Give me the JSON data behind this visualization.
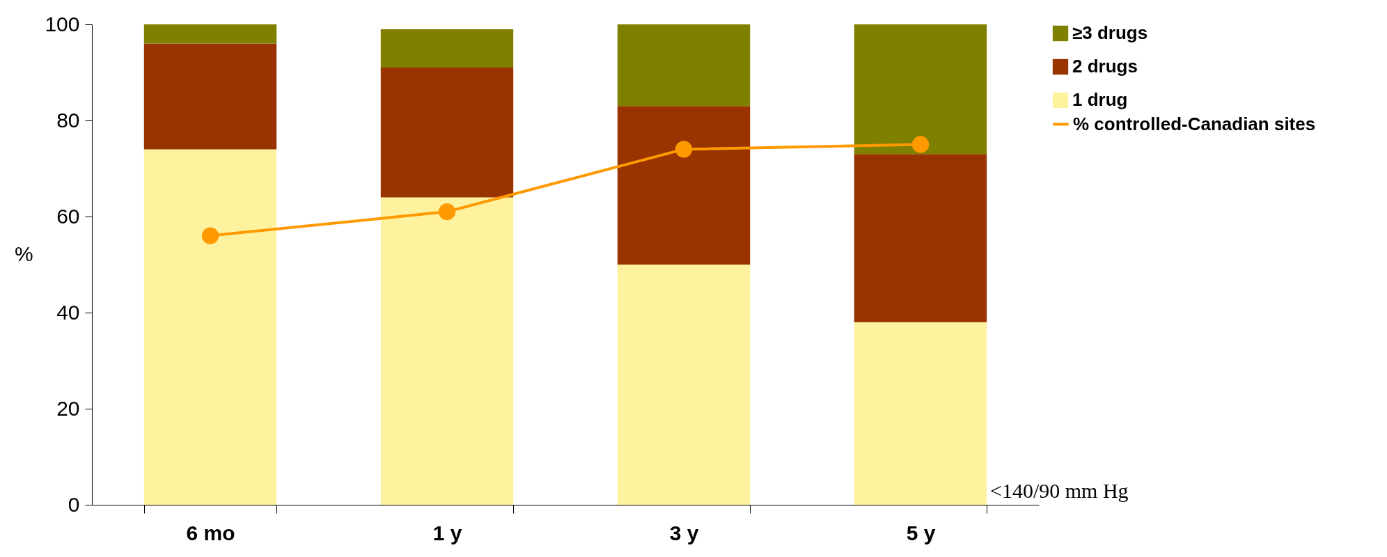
{
  "chart_data": {
    "type": "bar",
    "stacked": true,
    "ylabel": "%",
    "categories": [
      "6 mo",
      "1 y",
      "3 y",
      "5 y"
    ],
    "series": [
      {
        "name": "1 drug",
        "color": "#fff29e",
        "values": [
          74,
          64,
          50,
          38
        ]
      },
      {
        "name": "2 drugs",
        "color": "#993300",
        "values": [
          22,
          27,
          33,
          35
        ]
      },
      {
        "name": "≥3 drugs",
        "color": "#808000",
        "values": [
          4,
          8,
          17,
          27
        ]
      },
      {
        "name": "% controlled-Canadian sites",
        "type": "line",
        "color": "#ff9900",
        "values": [
          56,
          61,
          74,
          75
        ]
      }
    ],
    "ylim": [
      0,
      100
    ],
    "yticks": [
      0,
      20,
      40,
      60,
      80,
      100
    ],
    "legend": "right",
    "marker": "circle",
    "annotations": [
      "<140/90 mm Hg"
    ]
  }
}
